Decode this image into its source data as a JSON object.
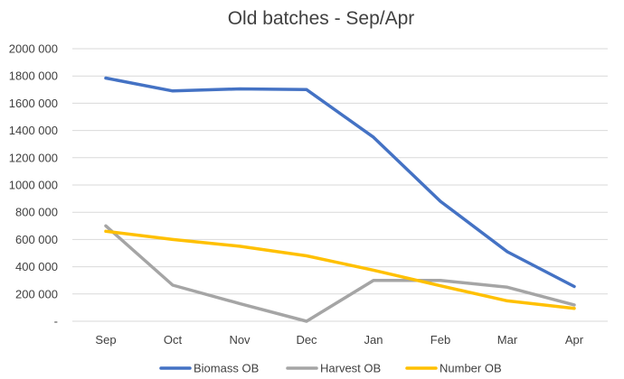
{
  "chart_data": {
    "type": "line",
    "title": "Old batches - Sep/Apr",
    "xlabel": "",
    "ylabel": "",
    "categories": [
      "Sep",
      "Oct",
      "Nov",
      "Dec",
      "Jan",
      "Feb",
      "Mar",
      "Apr"
    ],
    "ylim": [
      0,
      2000000
    ],
    "yticks": [
      {
        "value": 0,
        "label": "-"
      },
      {
        "value": 200000,
        "label": "200 000"
      },
      {
        "value": 400000,
        "label": "400 000"
      },
      {
        "value": 600000,
        "label": "600 000"
      },
      {
        "value": 800000,
        "label": "800 000"
      },
      {
        "value": 1000000,
        "label": "1000 000"
      },
      {
        "value": 1200000,
        "label": "1200 000"
      },
      {
        "value": 1400000,
        "label": "1400 000"
      },
      {
        "value": 1600000,
        "label": "1600 000"
      },
      {
        "value": 1800000,
        "label": "1800 000"
      },
      {
        "value": 2000000,
        "label": "2000 000"
      }
    ],
    "grid": true,
    "legend_position": "bottom",
    "series": [
      {
        "name": "Biomass OB",
        "color": "#4472C4",
        "values": [
          1785000,
          1690000,
          1705000,
          1700000,
          1350000,
          880000,
          510000,
          255000
        ]
      },
      {
        "name": "Harvest OB",
        "color": "#A5A5A5",
        "values": [
          700000,
          265000,
          130000,
          0,
          300000,
          300000,
          250000,
          120000
        ]
      },
      {
        "name": "Number OB",
        "color": "#FFC000",
        "values": [
          660000,
          600000,
          550000,
          480000,
          375000,
          260000,
          150000,
          95000
        ]
      }
    ]
  }
}
